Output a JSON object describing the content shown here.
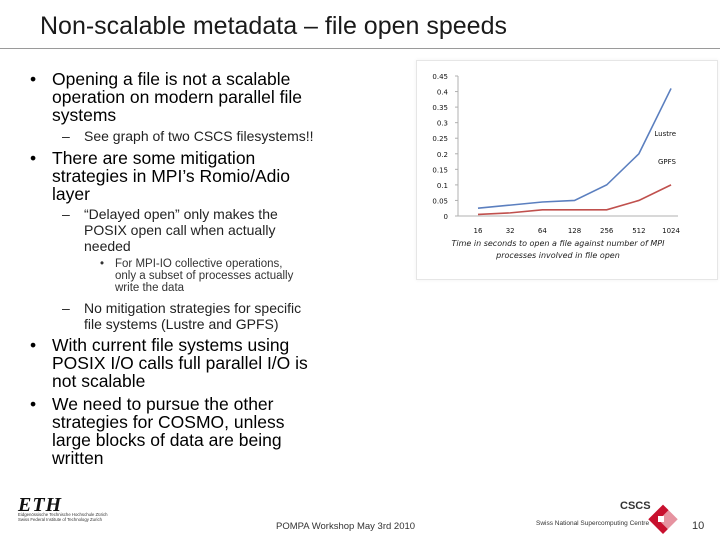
{
  "title": "Non-scalable metadata – file open speeds",
  "bullets": {
    "b1": {
      "marker": "•",
      "text": "Opening a file is not a scalable\noperation on modern parallel file\nsystems"
    },
    "b1_sub1": {
      "marker": "–",
      "text": "See graph of two CSCS filesystems!!"
    },
    "b2": {
      "marker": "•",
      "text": "There are some mitigation\nstrategies in MPI’s Romio/Adio\nlayer"
    },
    "b2_sub1": {
      "marker": "–",
      "text": "“Delayed open” only makes the\nPOSIX open call when actually\nneeded"
    },
    "b2_sub1_sub1": {
      "marker": "•",
      "text": "For MPI-IO collective operations,\nonly a subset of processes actually\nwrite the data"
    },
    "b2_sub2": {
      "marker": "–",
      "text": "No mitigation strategies for specific\nfile systems (Lustre and GPFS)"
    },
    "b3": {
      "marker": "•",
      "text": "With current file systems using\nPOSIX I/O calls full parallel I/O is\nnot scalable"
    },
    "b4": {
      "marker": "•",
      "text": "We need to pursue the other\nstrategies for COSMO, unless\nlarge blocks of data are being\nwritten"
    }
  },
  "chart_data": {
    "type": "line",
    "categories": [
      "16",
      "32",
      "64",
      "128",
      "256",
      "512",
      "1024"
    ],
    "series": [
      {
        "name": "Lustre",
        "values": [
          0.025,
          0.035,
          0.045,
          0.05,
          0.1,
          0.2,
          0.41
        ],
        "color": "#5b7fbf"
      },
      {
        "name": "GPFS",
        "values": [
          0.005,
          0.01,
          0.02,
          0.02,
          0.02,
          0.05,
          0.1
        ],
        "color": "#c0504d"
      }
    ],
    "y_ticks": [
      "0",
      "0.05",
      "0.1",
      "0.15",
      "0.2",
      "0.25",
      "0.3",
      "0.35",
      "0.4",
      "0.45"
    ],
    "ylim": [
      0,
      0.45
    ],
    "xlabel": "",
    "ylabel": "",
    "legend": "inline-right",
    "grid": false
  },
  "chart_caption": "Time in seconds to open a file against number of MPI\nprocesses involved in file open",
  "footer": {
    "eth_logo": "ETH",
    "eth_sub": "Eidgenössische Technische Hochschule Zürich\nSwiss Federal Institute of Technology Zurich",
    "center": "POMPA Workshop May 3rd 2010",
    "cscs_logo": "CSCS",
    "cscs_sub": "Swiss National Supercomputing Centre",
    "page_number": "10"
  }
}
